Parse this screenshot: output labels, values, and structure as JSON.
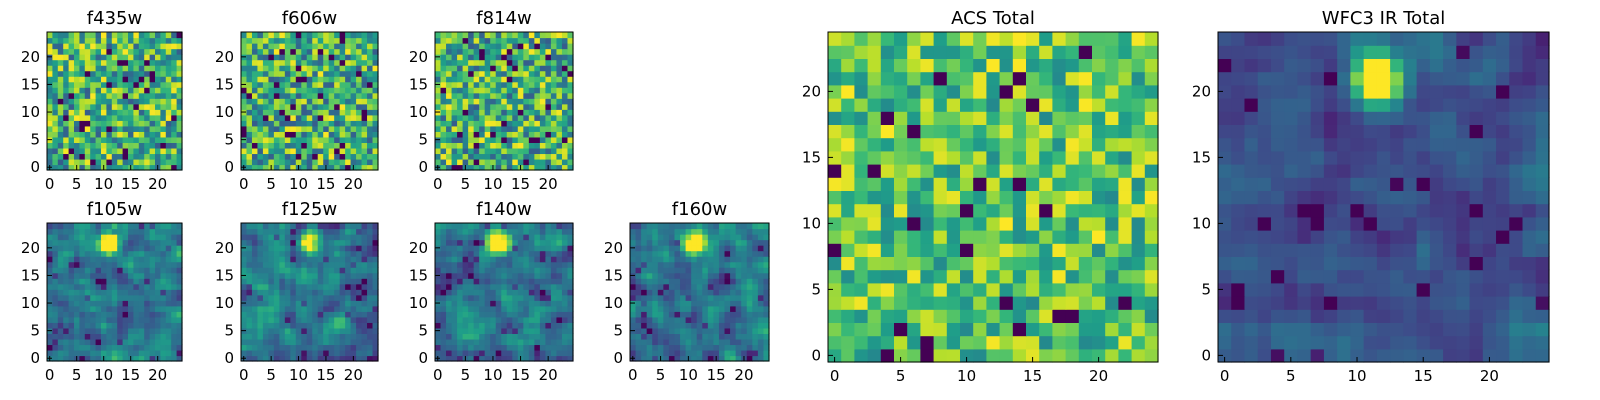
{
  "chart_data": [
    {
      "type": "heatmap",
      "title": "f435w",
      "grid_size": 25,
      "xticks": [
        0,
        5,
        10,
        15,
        20
      ],
      "yticks": [
        0,
        5,
        10,
        15,
        20
      ],
      "xlim": [
        0,
        25
      ],
      "ylim": [
        0,
        25
      ],
      "colormap": "viridis",
      "grid": false,
      "texture": "noise",
      "seed": 11,
      "bright_spot": null
    },
    {
      "type": "heatmap",
      "title": "f606w",
      "grid_size": 25,
      "xticks": [
        0,
        5,
        10,
        15,
        20
      ],
      "yticks": [
        0,
        5,
        10,
        15,
        20
      ],
      "xlim": [
        0,
        25
      ],
      "ylim": [
        0,
        25
      ],
      "colormap": "viridis",
      "grid": false,
      "texture": "noise",
      "seed": 23,
      "bright_spot": null
    },
    {
      "type": "heatmap",
      "title": "f814w",
      "grid_size": 25,
      "xticks": [
        0,
        5,
        10,
        15,
        20
      ],
      "yticks": [
        0,
        5,
        10,
        15,
        20
      ],
      "xlim": [
        0,
        25
      ],
      "ylim": [
        0,
        25
      ],
      "colormap": "viridis",
      "grid": false,
      "texture": "noise",
      "seed": 37,
      "bright_spot": null
    },
    {
      "type": "heatmap",
      "title": "f105w",
      "grid_size": 25,
      "xticks": [
        0,
        5,
        10,
        15,
        20
      ],
      "yticks": [
        0,
        5,
        10,
        15,
        20
      ],
      "xlim": [
        0,
        25
      ],
      "ylim": [
        0,
        25
      ],
      "colormap": "viridis",
      "grid": false,
      "texture": "smooth",
      "seed": 41,
      "bright_spot": {
        "x": 11,
        "y": 21
      }
    },
    {
      "type": "heatmap",
      "title": "f125w",
      "grid_size": 25,
      "xticks": [
        0,
        5,
        10,
        15,
        20
      ],
      "yticks": [
        0,
        5,
        10,
        15,
        20
      ],
      "xlim": [
        0,
        25
      ],
      "ylim": [
        0,
        25
      ],
      "colormap": "viridis",
      "grid": false,
      "texture": "smooth",
      "seed": 53,
      "bright_spot": {
        "x": 12,
        "y": 21
      }
    },
    {
      "type": "heatmap",
      "title": "f140w",
      "grid_size": 25,
      "xticks": [
        0,
        5,
        10,
        15,
        20
      ],
      "yticks": [
        0,
        5,
        10,
        15,
        20
      ],
      "xlim": [
        0,
        25
      ],
      "ylim": [
        0,
        25
      ],
      "colormap": "viridis",
      "grid": false,
      "texture": "smooth",
      "seed": 67,
      "bright_spot": {
        "x": 11,
        "y": 21
      }
    },
    {
      "type": "heatmap",
      "title": "f160w",
      "grid_size": 25,
      "xticks": [
        0,
        5,
        10,
        15,
        20
      ],
      "yticks": [
        0,
        5,
        10,
        15,
        20
      ],
      "xlim": [
        0,
        25
      ],
      "ylim": [
        0,
        25
      ],
      "colormap": "viridis",
      "grid": false,
      "texture": "smooth",
      "seed": 79,
      "bright_spot": {
        "x": 11,
        "y": 21
      }
    },
    {
      "type": "heatmap",
      "title": "ACS Total",
      "grid_size": 25,
      "xticks": [
        0,
        5,
        10,
        15,
        20
      ],
      "yticks": [
        0,
        5,
        10,
        15,
        20
      ],
      "xlim": [
        0,
        25
      ],
      "ylim": [
        0,
        25
      ],
      "colormap": "viridis",
      "grid": false,
      "texture": "noise-high",
      "seed": 91,
      "bright_spot": null
    },
    {
      "type": "heatmap",
      "title": "WFC3 IR Total",
      "grid_size": 25,
      "xticks": [
        0,
        5,
        10,
        15,
        20
      ],
      "yticks": [
        0,
        5,
        10,
        15,
        20
      ],
      "xlim": [
        0,
        25
      ],
      "ylim": [
        0,
        25
      ],
      "colormap": "viridis",
      "grid": false,
      "texture": "smooth-low",
      "seed": 103,
      "bright_spot": {
        "x": 11.5,
        "y": 21
      }
    }
  ]
}
